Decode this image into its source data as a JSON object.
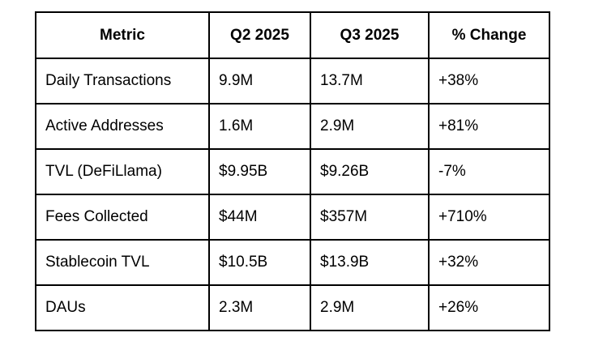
{
  "table": {
    "border_color": "#000000",
    "text_color": "#000000",
    "background_color": "#ffffff",
    "headers": [
      "Metric",
      "Q2 2025",
      "Q3 2025",
      "% Change"
    ],
    "rows": [
      {
        "metric": "Daily Transactions",
        "q2_2025": "9.9M",
        "q3_2025": "13.7M",
        "pct_change": "+38%"
      },
      {
        "metric": "Active Addresses",
        "q2_2025": "1.6M",
        "q3_2025": "2.9M",
        "pct_change": "+81%"
      },
      {
        "metric": "TVL (DeFiLlama)",
        "q2_2025": "$9.95B",
        "q3_2025": "$9.26B",
        "pct_change": "-7%"
      },
      {
        "metric": "Fees Collected",
        "q2_2025": "$44M",
        "q3_2025": "$357M",
        "pct_change": "+710%"
      },
      {
        "metric": "Stablecoin TVL",
        "q2_2025": "$10.5B",
        "q3_2025": "$13.9B",
        "pct_change": "+32%"
      },
      {
        "metric": "DAUs",
        "q2_2025": "2.3M",
        "q3_2025": "2.9M",
        "pct_change": "+26%"
      }
    ]
  }
}
